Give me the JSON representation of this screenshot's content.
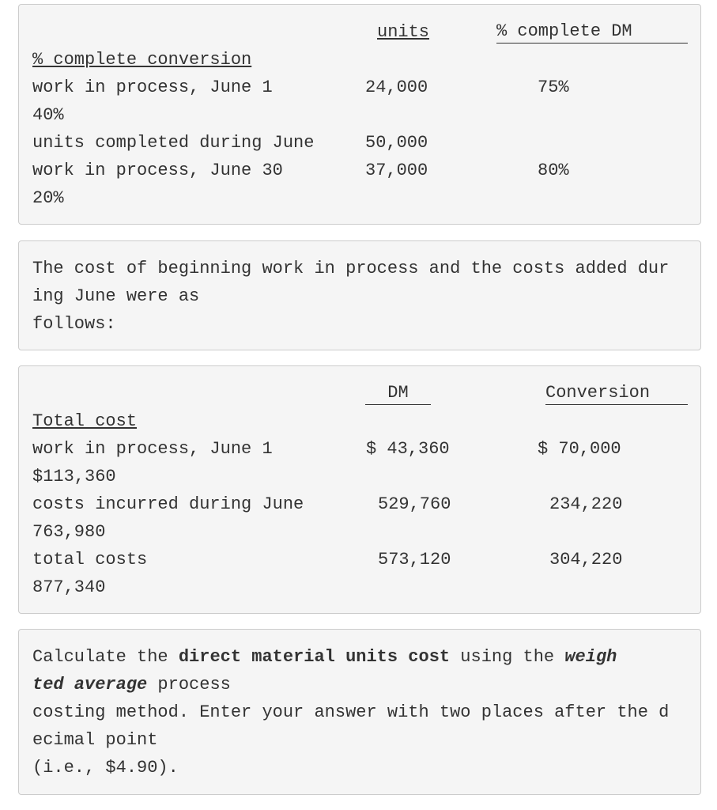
{
  "table1": {
    "headers": [
      "units",
      "% complete DM"
    ],
    "title": "% complete conversion",
    "rows": [
      {
        "label": "work in process, June 1",
        "units": "24,000",
        "dm": "75%",
        "conversion": "40%"
      },
      {
        "label": "units completed during June",
        "units": "50,000"
      },
      {
        "label": "work in process, June 30",
        "units": "37,000",
        "dm": "80%",
        "conversion": "20%"
      }
    ]
  },
  "note": {
    "lines": [
      "The cost of beginning work in process and the costs added dur",
      "ing June were as",
      "follows:"
    ]
  },
  "table2": {
    "headers": [
      "DM",
      "Conversion"
    ],
    "title": "Total cost",
    "rows": [
      {
        "label": "work in process, June 1",
        "dm": "$ 43,360",
        "conversion": "$ 70,000",
        "total": "$113,360"
      },
      {
        "label": "costs incurred during June",
        "dm": "529,760",
        "conversion": "234,220",
        "total": "763,980"
      },
      {
        "label": "total costs",
        "dm": "573,120",
        "conversion": "304,220",
        "total": "877,340"
      }
    ]
  },
  "question": {
    "lines": [
      [
        {
          "text": "Calculate the ",
          "style": "normal"
        },
        {
          "text": "direct material units cost",
          "style": "bold"
        },
        {
          "text": " using the ",
          "style": "normal"
        },
        {
          "text": "weigh",
          "style": "bold-italic"
        }
      ],
      [
        {
          "text": "ted average",
          "style": "bold-italic"
        },
        {
          "text": " process",
          "style": "normal"
        }
      ],
      [
        {
          "text": "costing method. Enter your answer with two places after the d",
          "style": "normal"
        }
      ],
      [
        {
          "text": "ecimal point",
          "style": "normal"
        }
      ],
      [
        {
          "text": "(i.e., $4.90).",
          "style": "normal"
        }
      ]
    ]
  }
}
